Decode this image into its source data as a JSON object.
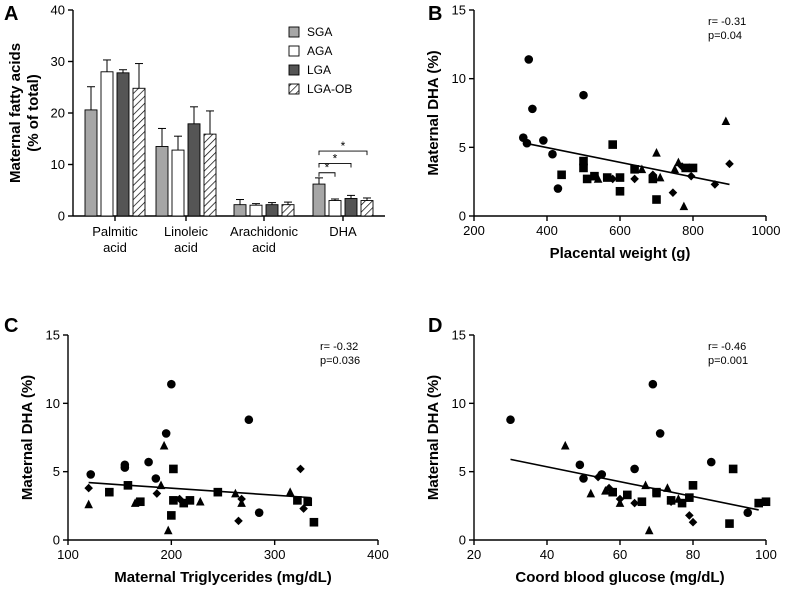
{
  "chart_data": [
    {
      "panel": "A",
      "type": "bar",
      "ylabel": "Maternal fatty acids (% of total)",
      "ylim": [
        0,
        40
      ],
      "yticks": [
        0,
        10,
        20,
        30,
        40
      ],
      "categories": [
        "Palmitic acid",
        "Linoleic acid",
        "Arachidonic acid",
        "DHA"
      ],
      "series": [
        {
          "name": "SGA",
          "color": "#a6a6a6",
          "pattern": "solid",
          "values": [
            20.6,
            13.5,
            2.2,
            6.2
          ],
          "errors": [
            4.5,
            3.5,
            1.0,
            1.2
          ]
        },
        {
          "name": "AGA",
          "color": "#ffffff",
          "pattern": "solid",
          "values": [
            28.0,
            12.8,
            2.1,
            3.0
          ],
          "errors": [
            2.3,
            2.7,
            0.3,
            0.3
          ]
        },
        {
          "name": "LGA",
          "color": "#555555",
          "pattern": "solid",
          "values": [
            27.8,
            17.9,
            2.2,
            3.4
          ],
          "errors": [
            0.6,
            3.3,
            0.4,
            0.6
          ]
        },
        {
          "name": "LGA-OB",
          "color": "#ffffff",
          "pattern": "hatch",
          "values": [
            24.8,
            15.9,
            2.2,
            3.0
          ],
          "errors": [
            4.8,
            4.5,
            0.5,
            0.5
          ]
        }
      ],
      "annotations": [
        {
          "text": "*",
          "from": "SGA",
          "to": "AGA",
          "category": "DHA"
        },
        {
          "text": "*",
          "from": "SGA",
          "to": "LGA",
          "category": "DHA"
        },
        {
          "text": "*",
          "from": "SGA",
          "to": "LGA-OB",
          "category": "DHA"
        }
      ]
    },
    {
      "panel": "B",
      "type": "scatter",
      "xlabel": "Placental weight (g)",
      "ylabel": "Maternal DHA (%)",
      "xlim": [
        200,
        1000
      ],
      "ylim": [
        0,
        15
      ],
      "xticks": [
        200,
        400,
        600,
        800,
        1000
      ],
      "yticks": [
        0,
        5,
        10,
        15
      ],
      "stats": {
        "r": "r= -0.31",
        "p": "p=0.04"
      },
      "fit": [
        [
          340,
          5.3
        ],
        [
          900,
          2.3
        ]
      ],
      "points": [
        {
          "x": 350,
          "y": 11.4,
          "m": "circle"
        },
        {
          "x": 360,
          "y": 7.8,
          "m": "circle"
        },
        {
          "x": 500,
          "y": 8.8,
          "m": "circle"
        },
        {
          "x": 335,
          "y": 5.7,
          "m": "circle"
        },
        {
          "x": 345,
          "y": 5.3,
          "m": "circle"
        },
        {
          "x": 390,
          "y": 5.5,
          "m": "circle"
        },
        {
          "x": 415,
          "y": 4.5,
          "m": "circle"
        },
        {
          "x": 430,
          "y": 2.0,
          "m": "circle"
        },
        {
          "x": 440,
          "y": 3.0,
          "m": "square"
        },
        {
          "x": 500,
          "y": 3.5,
          "m": "square"
        },
        {
          "x": 500,
          "y": 4.0,
          "m": "square"
        },
        {
          "x": 510,
          "y": 2.7,
          "m": "square"
        },
        {
          "x": 530,
          "y": 2.9,
          "m": "square"
        },
        {
          "x": 565,
          "y": 2.8,
          "m": "square"
        },
        {
          "x": 580,
          "y": 5.2,
          "m": "square"
        },
        {
          "x": 600,
          "y": 1.8,
          "m": "square"
        },
        {
          "x": 600,
          "y": 2.8,
          "m": "square"
        },
        {
          "x": 640,
          "y": 3.4,
          "m": "square"
        },
        {
          "x": 690,
          "y": 2.7,
          "m": "square"
        },
        {
          "x": 700,
          "y": 1.2,
          "m": "square"
        },
        {
          "x": 780,
          "y": 3.5,
          "m": "square"
        },
        {
          "x": 800,
          "y": 3.5,
          "m": "square"
        },
        {
          "x": 540,
          "y": 2.7,
          "m": "triangle"
        },
        {
          "x": 660,
          "y": 3.4,
          "m": "triangle"
        },
        {
          "x": 700,
          "y": 4.6,
          "m": "triangle"
        },
        {
          "x": 710,
          "y": 2.8,
          "m": "triangle"
        },
        {
          "x": 750,
          "y": 3.4,
          "m": "triangle"
        },
        {
          "x": 760,
          "y": 3.9,
          "m": "triangle"
        },
        {
          "x": 775,
          "y": 0.7,
          "m": "triangle"
        },
        {
          "x": 890,
          "y": 6.9,
          "m": "triangle"
        },
        {
          "x": 580,
          "y": 2.7,
          "m": "diamond"
        },
        {
          "x": 640,
          "y": 2.7,
          "m": "diamond"
        },
        {
          "x": 690,
          "y": 3.0,
          "m": "diamond"
        },
        {
          "x": 745,
          "y": 1.7,
          "m": "diamond"
        },
        {
          "x": 770,
          "y": 3.6,
          "m": "diamond"
        },
        {
          "x": 795,
          "y": 2.9,
          "m": "diamond"
        },
        {
          "x": 860,
          "y": 2.3,
          "m": "diamond"
        },
        {
          "x": 900,
          "y": 3.8,
          "m": "diamond"
        }
      ]
    },
    {
      "panel": "C",
      "type": "scatter",
      "xlabel": "Maternal Triglycerides (mg/dL)",
      "ylabel": "Maternal DHA (%)",
      "xlim": [
        100,
        400
      ],
      "ylim": [
        0,
        15
      ],
      "xticks": [
        100,
        200,
        300,
        400
      ],
      "yticks": [
        0,
        5,
        10,
        15
      ],
      "stats": {
        "r": "r= -0.32",
        "p": "p=0.036"
      },
      "fit": [
        [
          120,
          4.2
        ],
        [
          335,
          3.1
        ]
      ],
      "points": [
        {
          "x": 200,
          "y": 11.4,
          "m": "circle"
        },
        {
          "x": 195,
          "y": 7.8,
          "m": "circle"
        },
        {
          "x": 275,
          "y": 8.8,
          "m": "circle"
        },
        {
          "x": 122,
          "y": 4.8,
          "m": "circle"
        },
        {
          "x": 155,
          "y": 5.5,
          "m": "circle"
        },
        {
          "x": 155,
          "y": 5.3,
          "m": "circle"
        },
        {
          "x": 178,
          "y": 5.7,
          "m": "circle"
        },
        {
          "x": 185,
          "y": 4.5,
          "m": "circle"
        },
        {
          "x": 285,
          "y": 2.0,
          "m": "circle"
        },
        {
          "x": 140,
          "y": 3.5,
          "m": "square"
        },
        {
          "x": 158,
          "y": 4.0,
          "m": "square"
        },
        {
          "x": 170,
          "y": 2.8,
          "m": "square"
        },
        {
          "x": 200,
          "y": 1.8,
          "m": "square"
        },
        {
          "x": 202,
          "y": 2.9,
          "m": "square"
        },
        {
          "x": 202,
          "y": 5.2,
          "m": "square"
        },
        {
          "x": 212,
          "y": 2.7,
          "m": "square"
        },
        {
          "x": 218,
          "y": 2.9,
          "m": "square"
        },
        {
          "x": 245,
          "y": 3.5,
          "m": "square"
        },
        {
          "x": 322,
          "y": 2.9,
          "m": "square"
        },
        {
          "x": 332,
          "y": 2.8,
          "m": "square"
        },
        {
          "x": 338,
          "y": 1.3,
          "m": "square"
        },
        {
          "x": 120,
          "y": 2.6,
          "m": "triangle"
        },
        {
          "x": 165,
          "y": 2.7,
          "m": "triangle"
        },
        {
          "x": 190,
          "y": 4.0,
          "m": "triangle"
        },
        {
          "x": 193,
          "y": 6.9,
          "m": "triangle"
        },
        {
          "x": 197,
          "y": 0.7,
          "m": "triangle"
        },
        {
          "x": 228,
          "y": 2.8,
          "m": "triangle"
        },
        {
          "x": 262,
          "y": 3.4,
          "m": "triangle"
        },
        {
          "x": 268,
          "y": 2.7,
          "m": "triangle"
        },
        {
          "x": 315,
          "y": 3.5,
          "m": "triangle"
        },
        {
          "x": 120,
          "y": 3.8,
          "m": "diamond"
        },
        {
          "x": 186,
          "y": 3.4,
          "m": "diamond"
        },
        {
          "x": 208,
          "y": 3.0,
          "m": "diamond"
        },
        {
          "x": 265,
          "y": 1.4,
          "m": "diamond"
        },
        {
          "x": 268,
          "y": 3.0,
          "m": "diamond"
        },
        {
          "x": 325,
          "y": 5.2,
          "m": "diamond"
        },
        {
          "x": 328,
          "y": 2.3,
          "m": "diamond"
        }
      ]
    },
    {
      "panel": "D",
      "type": "scatter",
      "xlabel": "Coord blood glucose (mg/dL)",
      "ylabel": "Maternal DHA (%)",
      "xlim": [
        20,
        100
      ],
      "ylim": [
        0,
        15
      ],
      "xticks": [
        20,
        40,
        60,
        80,
        100
      ],
      "yticks": [
        0,
        5,
        10,
        15
      ],
      "stats": {
        "r": "r= -0.46",
        "p": "p=0.001"
      },
      "fit": [
        [
          30,
          5.9
        ],
        [
          98,
          2.2
        ]
      ],
      "points": [
        {
          "x": 30,
          "y": 8.8,
          "m": "circle"
        },
        {
          "x": 69,
          "y": 11.4,
          "m": "circle"
        },
        {
          "x": 71,
          "y": 7.8,
          "m": "circle"
        },
        {
          "x": 49,
          "y": 5.5,
          "m": "circle"
        },
        {
          "x": 50,
          "y": 4.5,
          "m": "circle"
        },
        {
          "x": 55,
          "y": 4.8,
          "m": "circle"
        },
        {
          "x": 64,
          "y": 5.2,
          "m": "circle"
        },
        {
          "x": 85,
          "y": 5.7,
          "m": "circle"
        },
        {
          "x": 95,
          "y": 2.0,
          "m": "circle"
        },
        {
          "x": 58,
          "y": 3.5,
          "m": "square"
        },
        {
          "x": 62,
          "y": 3.3,
          "m": "square"
        },
        {
          "x": 66,
          "y": 2.8,
          "m": "square"
        },
        {
          "x": 70,
          "y": 3.5,
          "m": "square"
        },
        {
          "x": 74,
          "y": 2.9,
          "m": "square"
        },
        {
          "x": 77,
          "y": 2.7,
          "m": "square"
        },
        {
          "x": 79,
          "y": 3.1,
          "m": "square"
        },
        {
          "x": 80,
          "y": 4.0,
          "m": "square"
        },
        {
          "x": 90,
          "y": 1.2,
          "m": "square"
        },
        {
          "x": 91,
          "y": 5.2,
          "m": "square"
        },
        {
          "x": 98,
          "y": 2.7,
          "m": "square"
        },
        {
          "x": 100,
          "y": 2.8,
          "m": "square"
        },
        {
          "x": 45,
          "y": 6.9,
          "m": "triangle"
        },
        {
          "x": 52,
          "y": 3.4,
          "m": "triangle"
        },
        {
          "x": 56,
          "y": 3.6,
          "m": "triangle"
        },
        {
          "x": 60,
          "y": 2.7,
          "m": "triangle"
        },
        {
          "x": 67,
          "y": 4.0,
          "m": "triangle"
        },
        {
          "x": 70,
          "y": 3.4,
          "m": "triangle"
        },
        {
          "x": 73,
          "y": 3.8,
          "m": "triangle"
        },
        {
          "x": 76,
          "y": 3.0,
          "m": "triangle"
        },
        {
          "x": 68,
          "y": 0.7,
          "m": "triangle"
        },
        {
          "x": 54,
          "y": 4.6,
          "m": "diamond"
        },
        {
          "x": 57,
          "y": 3.8,
          "m": "diamond"
        },
        {
          "x": 60,
          "y": 3.0,
          "m": "diamond"
        },
        {
          "x": 64,
          "y": 2.7,
          "m": "diamond"
        },
        {
          "x": 74,
          "y": 2.8,
          "m": "diamond"
        },
        {
          "x": 79,
          "y": 1.8,
          "m": "diamond"
        },
        {
          "x": 80,
          "y": 1.3,
          "m": "diamond"
        }
      ]
    }
  ]
}
